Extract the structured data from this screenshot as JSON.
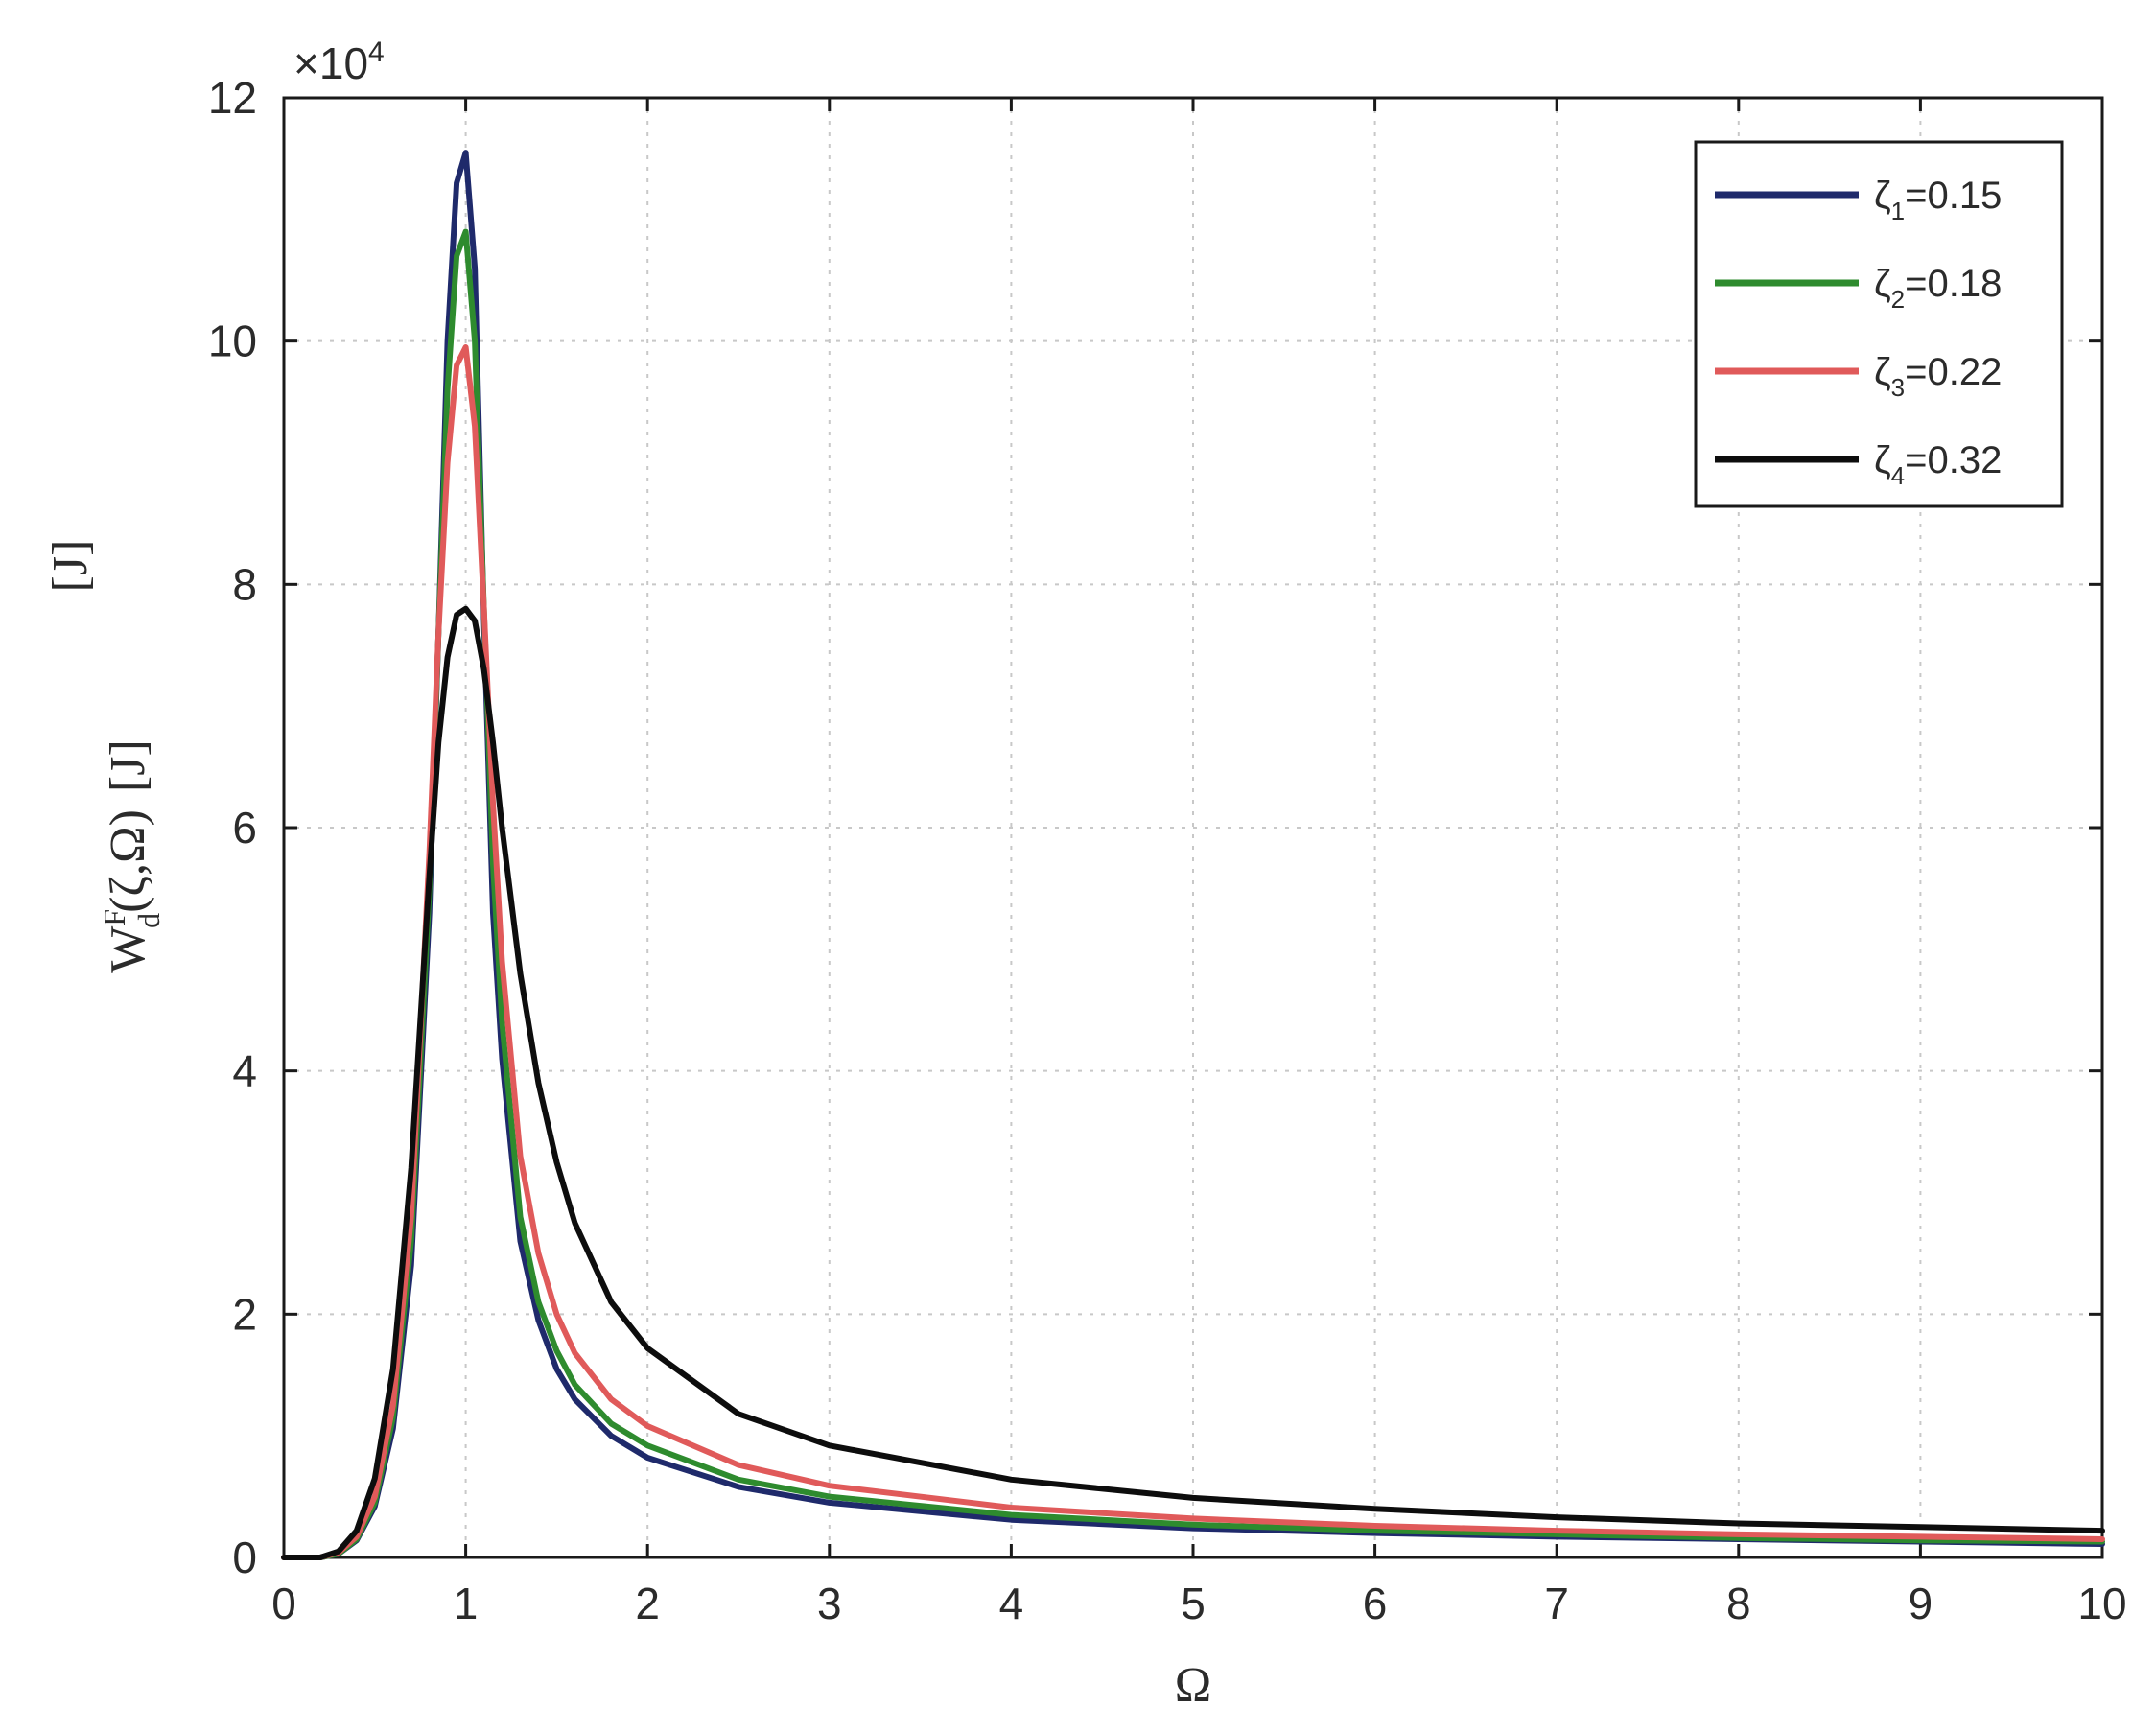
{
  "chart_data": {
    "type": "line",
    "title": "",
    "xlabel": "Ω",
    "ylabel": {
      "main": "W",
      "superscript": "F",
      "subscript": "d",
      "args": "(ζ,Ω)",
      "unit": "[J]"
    },
    "ylabel_extra": "[J]",
    "y_exponent_base": "×10",
    "y_exponent_power": "4",
    "xlim": [
      0,
      10
    ],
    "ylim": [
      0,
      12
    ],
    "y_scale_factor": 10000,
    "xticks": [
      0,
      1,
      2,
      3,
      4,
      5,
      6,
      7,
      8,
      9,
      10
    ],
    "yticks": [
      0,
      2,
      4,
      6,
      8,
      10,
      12
    ],
    "grid": true,
    "legend_position": "top-right",
    "series": [
      {
        "name": "ζ1=0.15",
        "label_main": "ζ",
        "label_sub": "1",
        "label_value": "=0.15",
        "color": "#1f2a6b",
        "x": [
          0,
          0.2,
          0.3,
          0.4,
          0.5,
          0.6,
          0.7,
          0.8,
          0.85,
          0.9,
          0.95,
          1.0,
          1.05,
          1.1,
          1.15,
          1.2,
          1.3,
          1.4,
          1.5,
          1.6,
          1.8,
          2.0,
          2.5,
          3.0,
          4.0,
          5.0,
          6.0,
          7.0,
          8.0,
          9.0,
          10.0
        ],
        "y": [
          0,
          0.0,
          0.03,
          0.14,
          0.42,
          1.06,
          2.4,
          5.3,
          7.6,
          10.0,
          11.3,
          11.55,
          10.6,
          7.7,
          5.3,
          4.1,
          2.6,
          1.95,
          1.55,
          1.3,
          1.0,
          0.82,
          0.58,
          0.45,
          0.31,
          0.24,
          0.2,
          0.17,
          0.15,
          0.13,
          0.11
        ]
      },
      {
        "name": "ζ2=0.18",
        "label_main": "ζ",
        "label_sub": "2",
        "label_value": "=0.18",
        "color": "#2e8b2e",
        "x": [
          0,
          0.2,
          0.3,
          0.4,
          0.5,
          0.6,
          0.7,
          0.8,
          0.85,
          0.9,
          0.95,
          1.0,
          1.05,
          1.1,
          1.15,
          1.2,
          1.3,
          1.4,
          1.5,
          1.6,
          1.8,
          2.0,
          2.5,
          3.0,
          4.0,
          5.0,
          6.0,
          7.0,
          8.0,
          9.0,
          10.0
        ],
        "y": [
          0,
          0.0,
          0.03,
          0.15,
          0.45,
          1.15,
          2.6,
          5.5,
          7.6,
          9.6,
          10.7,
          10.9,
          10.0,
          7.8,
          5.7,
          4.4,
          2.8,
          2.1,
          1.7,
          1.42,
          1.1,
          0.92,
          0.64,
          0.5,
          0.35,
          0.27,
          0.22,
          0.19,
          0.16,
          0.14,
          0.13
        ]
      },
      {
        "name": "ζ3=0.22",
        "label_main": "ζ",
        "label_sub": "3",
        "label_value": "=0.22",
        "color": "#e05a5a",
        "x": [
          0,
          0.2,
          0.3,
          0.4,
          0.5,
          0.6,
          0.7,
          0.8,
          0.85,
          0.9,
          0.95,
          1.0,
          1.05,
          1.1,
          1.15,
          1.2,
          1.3,
          1.4,
          1.5,
          1.6,
          1.8,
          2.0,
          2.5,
          3.0,
          4.0,
          5.0,
          6.0,
          7.0,
          8.0,
          9.0,
          10.0
        ],
        "y": [
          0,
          0.0,
          0.04,
          0.17,
          0.5,
          1.25,
          2.8,
          5.8,
          7.6,
          9.0,
          9.8,
          9.95,
          9.3,
          7.8,
          6.2,
          4.9,
          3.3,
          2.5,
          2.0,
          1.68,
          1.3,
          1.08,
          0.76,
          0.59,
          0.41,
          0.32,
          0.26,
          0.22,
          0.19,
          0.17,
          0.15
        ]
      },
      {
        "name": "ζ4=0.32",
        "label_main": "ζ",
        "label_sub": "4",
        "label_value": "=0.32",
        "color": "#0d0d0d",
        "x": [
          0,
          0.2,
          0.3,
          0.4,
          0.5,
          0.6,
          0.7,
          0.8,
          0.85,
          0.9,
          0.95,
          1.0,
          1.05,
          1.1,
          1.15,
          1.2,
          1.3,
          1.4,
          1.5,
          1.6,
          1.8,
          2.0,
          2.5,
          3.0,
          4.0,
          5.0,
          6.0,
          7.0,
          8.0,
          9.0,
          10.0
        ],
        "y": [
          0,
          0.0,
          0.05,
          0.22,
          0.65,
          1.55,
          3.2,
          5.6,
          6.7,
          7.4,
          7.75,
          7.8,
          7.7,
          7.3,
          6.7,
          6.0,
          4.8,
          3.9,
          3.25,
          2.75,
          2.1,
          1.72,
          1.18,
          0.92,
          0.64,
          0.49,
          0.4,
          0.33,
          0.28,
          0.25,
          0.22
        ]
      }
    ]
  }
}
